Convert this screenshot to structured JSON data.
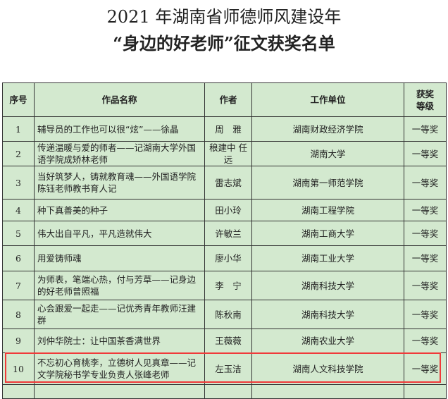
{
  "title": {
    "line1": "2021 年湖南省师德师风建设年",
    "line2": "“身边的好老师”征文获奖名单"
  },
  "table": {
    "headers": [
      "序号",
      "作品名称",
      "作者",
      "工作单位",
      "获奖等级"
    ],
    "rows": [
      {
        "no": "1",
        "title": "辅导员的工作也可以很“炫”——徐晶",
        "author": "周　雅",
        "unit": "湖南财政经济学院",
        "award": "一等奖"
      },
      {
        "no": "2",
        "title": "传递温暖与爱的师者——记湖南大学外国语学院成矫林老师",
        "author": "稂建中 任　远",
        "unit": "湖南大学",
        "award": "一等奖"
      },
      {
        "no": "3",
        "title": "当好筑梦人，铸就教育魂——外国语学院陈钰老师教书育人记",
        "author": "雷志斌",
        "unit": "湖南第一师范学院",
        "award": "一等奖"
      },
      {
        "no": "4",
        "title": "种下真善美的种子",
        "author": "田小玲",
        "unit": "湖南工程学院",
        "award": "一等奖"
      },
      {
        "no": "5",
        "title": "伟大出自平凡，平凡造就伟大",
        "author": "许敏兰",
        "unit": "湖南工商大学",
        "award": "一等奖"
      },
      {
        "no": "6",
        "title": "用爱铸师魂",
        "author": "廖小华",
        "unit": "湖南工业大学",
        "award": "一等奖"
      },
      {
        "no": "7",
        "title": "为师表，笔端心热，付与芳草——记身边的好老师曾照福",
        "author": "李　宁",
        "unit": "湖南科技大学",
        "award": "一等奖"
      },
      {
        "no": "8",
        "title": "心会跟爱一起走——记优秀青年教师汪建群",
        "author": "陈秋南",
        "unit": "湖南科技大学",
        "award": "一等奖"
      },
      {
        "no": "9",
        "title": "刘仲华院士：让中国茶香满世界",
        "author": "王薇薇",
        "unit": "湖南农业大学",
        "award": "一等奖"
      },
      {
        "no": "10",
        "title": "不忘初心育桃李，立德树人见真章——记文学院秘书学专业负责人张峰老师",
        "author": "左玉洁",
        "unit": "湖南人文科技学院",
        "award": "一等奖"
      }
    ]
  },
  "highlight_color": "#f03a3a"
}
